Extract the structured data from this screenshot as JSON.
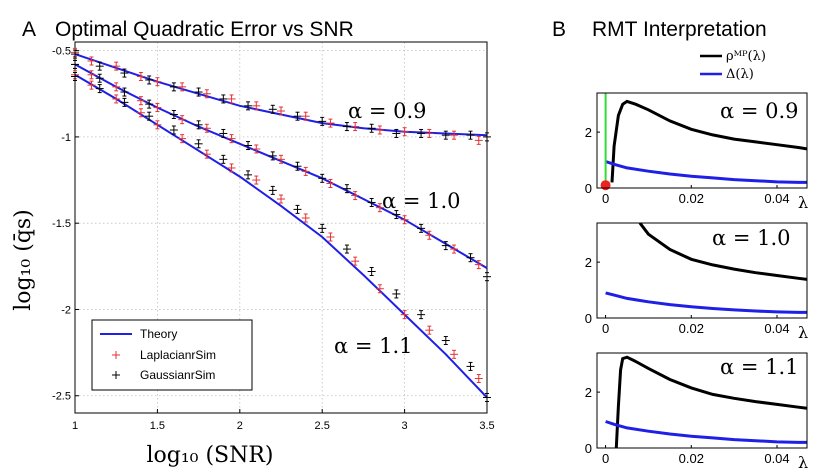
{
  "panel_a": {
    "letter": "A",
    "title": "Optimal Quadratic Error vs SNR",
    "ylabel": "log₁₀ (q̄s)",
    "xlabel": "log₁₀ (SNR)",
    "curve_labels": [
      "α = 0.9",
      "α = 1.0",
      "α = 1.1"
    ],
    "legend": [
      {
        "label": "Theory",
        "color": "#1f1fe6",
        "marker": "line"
      },
      {
        "label": "LaplacianrSim",
        "color": "#e63232",
        "marker": "+"
      },
      {
        "label": "GaussianrSim",
        "color": "#000000",
        "marker": "+"
      }
    ]
  },
  "panel_b": {
    "letter": "B",
    "title": "RMT Interpretation",
    "legend": [
      {
        "label": "ρᴹᴾ(λ)",
        "color": "#000000"
      },
      {
        "label": "Δ(λ)",
        "color": "#1f1fe6"
      }
    ],
    "subplots": [
      {
        "label": "α = 0.9",
        "xaxis_label": "λ"
      },
      {
        "label": "α = 1.0",
        "xaxis_label": "λ"
      },
      {
        "label": "α = 1.1",
        "xaxis_label": "λ"
      }
    ]
  },
  "chart_data": [
    {
      "type": "line",
      "title": "Optimal Quadratic Error vs SNR",
      "xlabel": "log₁₀ (SNR)",
      "ylabel": "log₁₀ (q̄s)",
      "xlim": [
        1,
        3.5
      ],
      "ylim": [
        -2.6,
        -0.45
      ],
      "x_ticks": [
        "1",
        "1.5",
        "2",
        "2.5",
        "3",
        "3.5"
      ],
      "y_ticks": [
        "-0.5",
        "-1",
        "-1.5",
        "-2",
        "-2.5"
      ],
      "grid": true,
      "legend_position": "bottom-left",
      "series": [
        {
          "name": "Theory",
          "group": "α = 0.9",
          "x": [
            1.0,
            1.25,
            1.5,
            1.75,
            2.0,
            2.25,
            2.5,
            2.75,
            3.0,
            3.25,
            3.5
          ],
          "y": [
            -0.52,
            -0.6,
            -0.68,
            -0.75,
            -0.82,
            -0.87,
            -0.92,
            -0.95,
            -0.97,
            -0.98,
            -0.99
          ]
        },
        {
          "name": "Theory",
          "group": "α = 1.0",
          "x": [
            1.0,
            1.25,
            1.5,
            1.75,
            2.0,
            2.25,
            2.5,
            2.75,
            3.0,
            3.25,
            3.5
          ],
          "y": [
            -0.58,
            -0.71,
            -0.83,
            -0.94,
            -1.04,
            -1.14,
            -1.24,
            -1.36,
            -1.48,
            -1.62,
            -1.76
          ]
        },
        {
          "name": "Theory",
          "group": "α = 1.1",
          "x": [
            1.0,
            1.25,
            1.5,
            1.75,
            2.0,
            2.25,
            2.5,
            2.75,
            3.0,
            3.25,
            3.5
          ],
          "y": [
            -0.64,
            -0.78,
            -0.93,
            -1.08,
            -1.23,
            -1.4,
            -1.58,
            -1.8,
            -2.03,
            -2.26,
            -2.51
          ]
        },
        {
          "name": "LaplacianrSim",
          "group": "α = 0.9",
          "x": [
            1.0,
            1.1,
            1.25,
            1.4,
            1.5,
            1.65,
            1.8,
            1.95,
            2.1,
            2.25,
            2.4,
            2.55,
            2.7,
            2.85,
            3.0,
            3.15,
            3.3,
            3.45
          ],
          "y": [
            -0.51,
            -0.56,
            -0.59,
            -0.65,
            -0.68,
            -0.71,
            -0.75,
            -0.78,
            -0.82,
            -0.85,
            -0.88,
            -0.92,
            -0.94,
            -0.96,
            -0.97,
            -0.98,
            -0.99,
            -1.02
          ]
        },
        {
          "name": "LaplacianrSim",
          "group": "α = 1.0",
          "x": [
            1.0,
            1.1,
            1.25,
            1.4,
            1.5,
            1.65,
            1.8,
            1.95,
            2.1,
            2.25,
            2.4,
            2.55,
            2.7,
            2.85,
            3.0,
            3.15,
            3.3,
            3.45
          ],
          "y": [
            -0.58,
            -0.64,
            -0.71,
            -0.79,
            -0.83,
            -0.9,
            -0.95,
            -1.01,
            -1.07,
            -1.13,
            -1.2,
            -1.27,
            -1.34,
            -1.41,
            -1.48,
            -1.57,
            -1.65,
            -1.74
          ]
        },
        {
          "name": "LaplacianrSim",
          "group": "α = 1.1",
          "x": [
            1.0,
            1.1,
            1.25,
            1.4,
            1.5,
            1.65,
            1.8,
            1.95,
            2.1,
            2.25,
            2.4,
            2.55,
            2.7,
            2.85,
            3.0,
            3.15,
            3.3,
            3.45
          ],
          "y": [
            -0.64,
            -0.7,
            -0.78,
            -0.86,
            -0.93,
            -1.01,
            -1.1,
            -1.18,
            -1.25,
            -1.36,
            -1.47,
            -1.58,
            -1.72,
            -1.88,
            -2.03,
            -2.12,
            -2.26,
            -2.4
          ]
        },
        {
          "name": "GaussianrSim",
          "group": "α = 0.9",
          "x": [
            1.0,
            1.15,
            1.3,
            1.45,
            1.6,
            1.75,
            1.9,
            2.05,
            2.2,
            2.35,
            2.5,
            2.65,
            2.8,
            2.95,
            3.1,
            3.25,
            3.4,
            3.5
          ],
          "y": [
            -0.52,
            -0.59,
            -0.63,
            -0.67,
            -0.71,
            -0.74,
            -0.78,
            -0.82,
            -0.84,
            -0.88,
            -0.91,
            -0.94,
            -0.95,
            -0.98,
            -0.98,
            -0.99,
            -0.99,
            -1.0
          ]
        },
        {
          "name": "GaussianrSim",
          "group": "α = 1.0",
          "x": [
            1.0,
            1.15,
            1.3,
            1.45,
            1.6,
            1.75,
            1.9,
            2.05,
            2.2,
            2.35,
            2.5,
            2.65,
            2.8,
            2.95,
            3.1,
            3.25,
            3.4,
            3.5
          ],
          "y": [
            -0.58,
            -0.66,
            -0.74,
            -0.81,
            -0.87,
            -0.93,
            -0.98,
            -1.05,
            -1.11,
            -1.17,
            -1.24,
            -1.3,
            -1.38,
            -1.45,
            -1.53,
            -1.63,
            -1.7,
            -1.81
          ]
        },
        {
          "name": "GaussianrSim",
          "group": "α = 1.1",
          "x": [
            1.0,
            1.15,
            1.3,
            1.45,
            1.6,
            1.75,
            1.9,
            2.05,
            2.2,
            2.35,
            2.5,
            2.65,
            2.8,
            2.95,
            3.1,
            3.25,
            3.4,
            3.5
          ],
          "y": [
            -0.65,
            -0.72,
            -0.8,
            -0.88,
            -0.96,
            -1.04,
            -1.13,
            -1.22,
            -1.31,
            -1.42,
            -1.53,
            -1.65,
            -1.78,
            -1.91,
            -2.03,
            -2.18,
            -2.33,
            -2.51
          ]
        }
      ]
    },
    {
      "type": "line",
      "title": "α = 0.9",
      "xlim": [
        -0.002,
        0.047
      ],
      "ylim": [
        0,
        3.4
      ],
      "x_ticks": [
        "0",
        "0.02",
        "0.04"
      ],
      "y_ticks": [
        "0",
        "2"
      ],
      "series": [
        {
          "name": "ρᴹᴾ(λ)",
          "x": [
            0.0015,
            0.002,
            0.003,
            0.004,
            0.005,
            0.007,
            0.01,
            0.015,
            0.02,
            0.025,
            0.03,
            0.035,
            0.04,
            0.045,
            0.047
          ],
          "y": [
            0.2,
            1.5,
            2.6,
            3.0,
            3.1,
            3.0,
            2.8,
            2.4,
            2.1,
            1.9,
            1.75,
            1.65,
            1.55,
            1.45,
            1.4
          ]
        },
        {
          "name": "Δ(λ)",
          "x": [
            0.0,
            0.002,
            0.005,
            0.01,
            0.015,
            0.02,
            0.025,
            0.03,
            0.035,
            0.04,
            0.045,
            0.047
          ],
          "y": [
            0.95,
            0.85,
            0.72,
            0.6,
            0.5,
            0.42,
            0.36,
            0.3,
            0.26,
            0.22,
            0.2,
            0.2
          ]
        },
        {
          "name": "",
          "color": "#33dd33",
          "x": [
            0.0,
            0.0
          ],
          "y": [
            0,
            3.4
          ]
        },
        {
          "name": "",
          "color": "#ee2222",
          "marker": "dot",
          "x": [
            0.0
          ],
          "y": [
            0.1
          ]
        }
      ]
    },
    {
      "type": "line",
      "title": "α = 1.0",
      "xlim": [
        -0.002,
        0.047
      ],
      "ylim": [
        0,
        3.4
      ],
      "x_ticks": [
        "0",
        "0.02",
        "0.04"
      ],
      "y_ticks": [
        "0",
        "2"
      ],
      "series": [
        {
          "name": "ρᴹᴾ(λ)",
          "x": [
            0.008,
            0.01,
            0.015,
            0.02,
            0.025,
            0.03,
            0.035,
            0.04,
            0.045,
            0.047
          ],
          "y": [
            3.4,
            3.0,
            2.45,
            2.1,
            1.9,
            1.75,
            1.62,
            1.52,
            1.42,
            1.38
          ]
        },
        {
          "name": "Δ(λ)",
          "x": [
            0.0,
            0.002,
            0.005,
            0.01,
            0.015,
            0.02,
            0.025,
            0.03,
            0.035,
            0.04,
            0.045,
            0.047
          ],
          "y": [
            0.9,
            0.82,
            0.7,
            0.58,
            0.48,
            0.4,
            0.34,
            0.29,
            0.25,
            0.22,
            0.2,
            0.2
          ]
        }
      ]
    },
    {
      "type": "line",
      "title": "α = 1.1",
      "xlim": [
        -0.002,
        0.047
      ],
      "ylim": [
        0,
        3.4
      ],
      "x_ticks": [
        "0",
        "0.02",
        "0.04"
      ],
      "y_ticks": [
        "0",
        "2"
      ],
      "series": [
        {
          "name": "ρᴹᴾ(λ)",
          "x": [
            0.0025,
            0.003,
            0.0035,
            0.004,
            0.005,
            0.007,
            0.01,
            0.015,
            0.02,
            0.025,
            0.03,
            0.035,
            0.04,
            0.045,
            0.047
          ],
          "y": [
            0.0,
            1.5,
            2.8,
            3.2,
            3.25,
            3.1,
            2.85,
            2.45,
            2.15,
            1.92,
            1.78,
            1.66,
            1.56,
            1.46,
            1.42
          ]
        },
        {
          "name": "Δ(λ)",
          "x": [
            0.0,
            0.002,
            0.005,
            0.01,
            0.015,
            0.02,
            0.025,
            0.03,
            0.035,
            0.04,
            0.045,
            0.047
          ],
          "y": [
            0.95,
            0.85,
            0.72,
            0.6,
            0.5,
            0.42,
            0.36,
            0.3,
            0.26,
            0.22,
            0.2,
            0.2
          ]
        }
      ]
    }
  ]
}
